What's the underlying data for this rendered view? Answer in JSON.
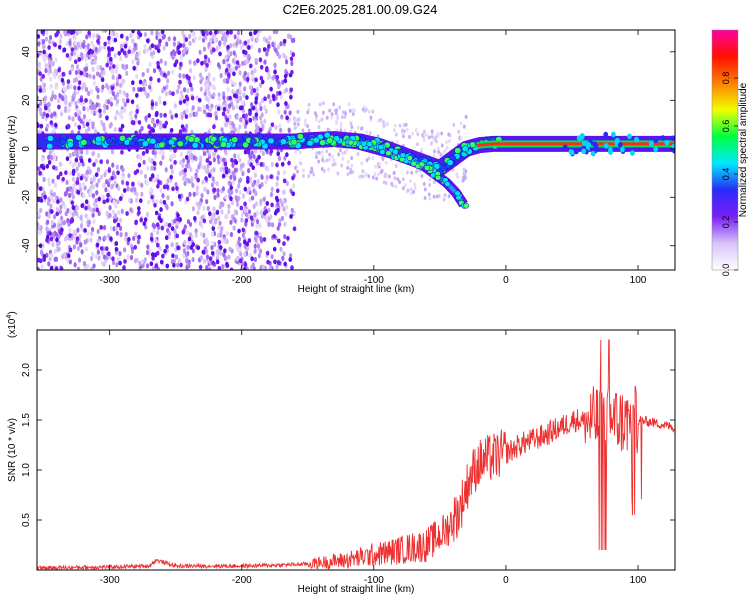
{
  "figure": {
    "title": "C2E6.2025.281.00.09.G24"
  },
  "chart_data": [
    {
      "type": "heatmap",
      "xlabel": "Height of straight line (km)",
      "ylabel": "Frequency (Hz)",
      "xlim": [
        -355,
        128
      ],
      "ylim": [
        -50,
        49
      ],
      "xticks": [
        -300,
        -200,
        -100,
        0,
        100
      ],
      "yticks": [
        -40,
        -20,
        0,
        20,
        40
      ],
      "grid": false,
      "trace": {
        "ridge_x": [
          -355,
          -160,
          -150,
          -130,
          -110,
          -95,
          -80,
          -65,
          -50,
          -40,
          -30,
          -20,
          -10,
          0,
          50,
          75,
          100,
          128
        ],
        "ridge_y": [
          3,
          3,
          3.5,
          4,
          3,
          1,
          -2,
          -5,
          -8,
          -4,
          0,
          1.5,
          2,
          2,
          2,
          2,
          2,
          2
        ],
        "branch_x": [
          -120,
          -100,
          -80,
          -65,
          -55,
          -45,
          -38,
          -32
        ],
        "branch_y": [
          3,
          0,
          -3,
          -6,
          -10,
          -14,
          -18,
          -23
        ],
        "noise_x_range": [
          -355,
          -160
        ],
        "noise_y_range": [
          -50,
          49
        ]
      },
      "colorbar": {
        "label": "Normalized spectral amplitude",
        "range": [
          0,
          1
        ],
        "ticks": [
          "0.0",
          "0.2",
          "0.4",
          "0.6",
          "0.8"
        ],
        "tick_values": [
          0,
          0.2,
          0.4,
          0.6,
          0.8
        ],
        "colors": [
          "#ffffff",
          "#d8c4f8",
          "#7b1ff8",
          "#2a2af8",
          "#00e8ff",
          "#00ff40",
          "#f0ff00",
          "#ff8000",
          "#ff1000",
          "#ff00a0"
        ]
      }
    },
    {
      "type": "line",
      "xlabel": "Height of straight line (km)",
      "ylabel": "SNR (10 * v/v)",
      "multiplier_base": "(x10",
      "multiplier_exp": "4",
      "multiplier_close": ")",
      "xlim": [
        -355,
        128
      ],
      "ylim": [
        0,
        2.4
      ],
      "xticks": [
        -300,
        -200,
        -100,
        0,
        100
      ],
      "yticks": [
        0.5,
        1.0,
        1.5,
        2.0
      ],
      "ytick_labels": [
        "0.5",
        "1.0",
        "1.5",
        "2.0"
      ],
      "color": "#ee3030",
      "x": [
        -355,
        -300,
        -270,
        -265,
        -250,
        -200,
        -170,
        -150,
        -120,
        -100,
        -80,
        -60,
        -45,
        -35,
        -28,
        -22,
        -15,
        -5,
        5,
        10,
        20,
        30,
        40,
        45,
        50,
        55,
        60,
        70,
        75,
        80,
        90,
        100,
        110,
        120,
        128
      ],
      "y": [
        0.02,
        0.03,
        0.04,
        0.1,
        0.04,
        0.04,
        0.05,
        0.06,
        0.1,
        0.15,
        0.2,
        0.25,
        0.4,
        0.6,
        0.9,
        1.05,
        1.1,
        1.15,
        1.2,
        1.25,
        1.3,
        1.35,
        1.42,
        1.45,
        1.5,
        1.5,
        1.48,
        1.5,
        1.5,
        1.5,
        1.48,
        1.5,
        1.48,
        1.45,
        1.42
      ]
    }
  ]
}
